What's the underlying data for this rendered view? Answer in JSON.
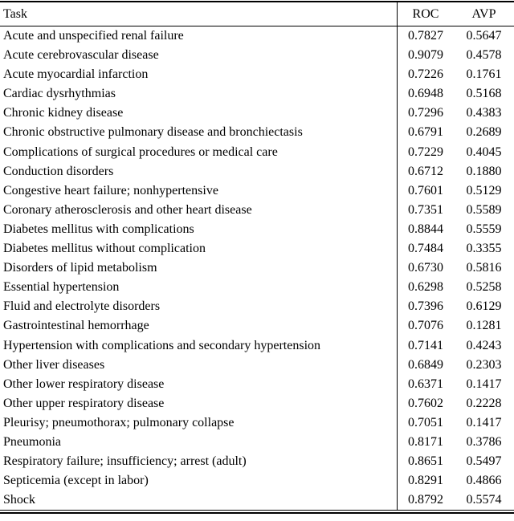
{
  "table": {
    "columns": {
      "task": "Task",
      "roc": "ROC",
      "avp": "AVP"
    },
    "rows": [
      {
        "task": "Acute and unspecified renal failure",
        "roc": "0.7827",
        "avp": "0.5647"
      },
      {
        "task": "Acute cerebrovascular disease",
        "roc": "0.9079",
        "avp": "0.4578"
      },
      {
        "task": "Acute myocardial infarction",
        "roc": "0.7226",
        "avp": "0.1761"
      },
      {
        "task": "Cardiac dysrhythmias",
        "roc": "0.6948",
        "avp": "0.5168"
      },
      {
        "task": "Chronic kidney disease",
        "roc": "0.7296",
        "avp": "0.4383"
      },
      {
        "task": "Chronic obstructive pulmonary disease and bronchiectasis",
        "roc": "0.6791",
        "avp": "0.2689"
      },
      {
        "task": "Complications of surgical procedures or medical care",
        "roc": "0.7229",
        "avp": "0.4045"
      },
      {
        "task": "Conduction disorders",
        "roc": "0.6712",
        "avp": "0.1880"
      },
      {
        "task": "Congestive heart failure; nonhypertensive",
        "roc": "0.7601",
        "avp": "0.5129"
      },
      {
        "task": "Coronary atherosclerosis and other heart disease",
        "roc": "0.7351",
        "avp": "0.5589"
      },
      {
        "task": "Diabetes mellitus with complications",
        "roc": "0.8844",
        "avp": "0.5559"
      },
      {
        "task": "Diabetes mellitus without complication",
        "roc": "0.7484",
        "avp": "0.3355"
      },
      {
        "task": "Disorders of lipid metabolism",
        "roc": "0.6730",
        "avp": "0.5816"
      },
      {
        "task": "Essential hypertension",
        "roc": "0.6298",
        "avp": "0.5258"
      },
      {
        "task": "Fluid and electrolyte disorders",
        "roc": "0.7396",
        "avp": "0.6129"
      },
      {
        "task": "Gastrointestinal hemorrhage",
        "roc": "0.7076",
        "avp": "0.1281"
      },
      {
        "task": "Hypertension with complications and secondary hypertension",
        "roc": "0.7141",
        "avp": "0.4243"
      },
      {
        "task": "Other liver diseases",
        "roc": "0.6849",
        "avp": "0.2303"
      },
      {
        "task": "Other lower respiratory disease",
        "roc": "0.6371",
        "avp": "0.1417"
      },
      {
        "task": "Other upper respiratory disease",
        "roc": "0.7602",
        "avp": "0.2228"
      },
      {
        "task": "Pleurisy; pneumothorax; pulmonary collapse",
        "roc": "0.7051",
        "avp": "0.1417"
      },
      {
        "task": "Pneumonia",
        "roc": "0.8171",
        "avp": "0.3786"
      },
      {
        "task": "Respiratory failure; insufficiency; arrest (adult)",
        "roc": "0.8651",
        "avp": "0.5497"
      },
      {
        "task": "Septicemia (except in labor)",
        "roc": "0.8291",
        "avp": "0.4866"
      },
      {
        "task": "Shock",
        "roc": "0.8792",
        "avp": "0.5574"
      }
    ]
  },
  "colors": {
    "text": "#000000",
    "background": "#ffffff",
    "rule": "#000000"
  }
}
